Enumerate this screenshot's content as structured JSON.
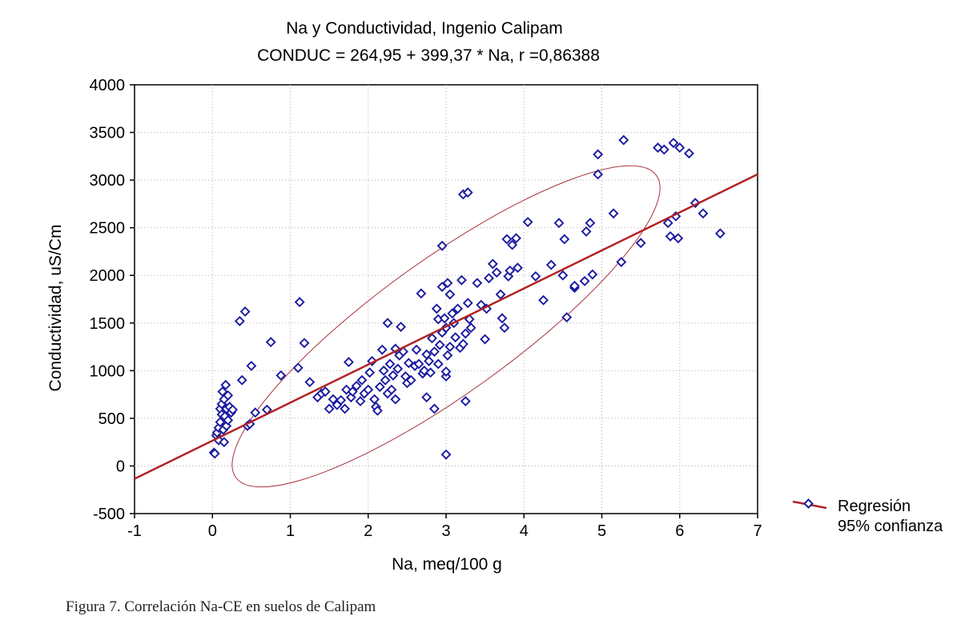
{
  "caption": "Figura 7. Correlación Na-CE en suelos de Calipam",
  "colors": {
    "point_stroke": "#1a1aa0",
    "regression_line": "#b22222",
    "ellipse": "#a8323c",
    "grid": "#b0b0b0"
  },
  "chart_data": {
    "type": "scatter",
    "title": "Na y Conductividad, Ingenio Calipam",
    "subtitle": "CONDUC = 264,95 + 399,37 * Na, r =0,86388",
    "xlabel": "Na, meq/100 g",
    "ylabel": "Conductividad, uS/Cm",
    "xlim": [
      -1,
      7
    ],
    "ylim": [
      -500,
      4000
    ],
    "x_ticks": [
      -1,
      0,
      1,
      2,
      3,
      4,
      5,
      6,
      7
    ],
    "y_ticks": [
      -500,
      0,
      500,
      1000,
      1500,
      2000,
      2500,
      3000,
      3500,
      4000
    ],
    "grid": true,
    "legend": {
      "placement": "right",
      "entries": [
        "Regresión",
        "95% confianza"
      ]
    },
    "regression": {
      "intercept": 264.95,
      "slope": 399.37,
      "r": 0.86388
    },
    "confidence_ellipse": {
      "center": [
        3.0,
        1465
      ],
      "extreme_upper": [
        5.7,
        3050
      ],
      "extreme_lower": [
        0.3,
        -120
      ]
    },
    "points": [
      [
        0.02,
        140
      ],
      [
        0.03,
        130
      ],
      [
        0.05,
        320
      ],
      [
        0.06,
        350
      ],
      [
        0.08,
        270
      ],
      [
        0.08,
        400
      ],
      [
        0.1,
        460
      ],
      [
        0.1,
        600
      ],
      [
        0.12,
        650
      ],
      [
        0.12,
        540
      ],
      [
        0.13,
        780
      ],
      [
        0.14,
        380
      ],
      [
        0.15,
        250
      ],
      [
        0.15,
        700
      ],
      [
        0.16,
        520
      ],
      [
        0.17,
        850
      ],
      [
        0.18,
        600
      ],
      [
        0.18,
        420
      ],
      [
        0.2,
        740
      ],
      [
        0.2,
        480
      ],
      [
        0.22,
        620
      ],
      [
        0.24,
        560
      ],
      [
        0.26,
        590
      ],
      [
        0.35,
        1520
      ],
      [
        0.38,
        900
      ],
      [
        0.42,
        1620
      ],
      [
        0.45,
        420
      ],
      [
        0.48,
        440
      ],
      [
        0.5,
        1050
      ],
      [
        0.55,
        560
      ],
      [
        0.7,
        590
      ],
      [
        0.75,
        1300
      ],
      [
        0.88,
        950
      ],
      [
        1.1,
        1030
      ],
      [
        1.12,
        1720
      ],
      [
        1.18,
        1290
      ],
      [
        1.25,
        880
      ],
      [
        1.35,
        720
      ],
      [
        1.4,
        760
      ],
      [
        1.45,
        780
      ],
      [
        1.5,
        600
      ],
      [
        1.55,
        700
      ],
      [
        1.6,
        640
      ],
      [
        1.65,
        690
      ],
      [
        1.7,
        600
      ],
      [
        1.72,
        800
      ],
      [
        1.75,
        1090
      ],
      [
        1.78,
        720
      ],
      [
        1.8,
        780
      ],
      [
        1.85,
        840
      ],
      [
        1.9,
        680
      ],
      [
        1.92,
        900
      ],
      [
        1.95,
        760
      ],
      [
        2.0,
        800
      ],
      [
        2.02,
        980
      ],
      [
        2.05,
        1100
      ],
      [
        2.08,
        700
      ],
      [
        2.1,
        620
      ],
      [
        2.12,
        580
      ],
      [
        2.15,
        830
      ],
      [
        2.18,
        1220
      ],
      [
        2.2,
        1000
      ],
      [
        2.22,
        900
      ],
      [
        2.25,
        760
      ],
      [
        2.25,
        1500
      ],
      [
        2.28,
        1070
      ],
      [
        2.3,
        800
      ],
      [
        2.32,
        950
      ],
      [
        2.35,
        700
      ],
      [
        2.35,
        1230
      ],
      [
        2.38,
        1020
      ],
      [
        2.4,
        1160
      ],
      [
        2.42,
        1460
      ],
      [
        2.45,
        1200
      ],
      [
        2.48,
        940
      ],
      [
        2.5,
        870
      ],
      [
        2.52,
        1080
      ],
      [
        2.55,
        900
      ],
      [
        2.6,
        1050
      ],
      [
        2.62,
        1220
      ],
      [
        2.65,
        1070
      ],
      [
        2.68,
        1810
      ],
      [
        2.7,
        970
      ],
      [
        2.72,
        1000
      ],
      [
        2.75,
        1170
      ],
      [
        2.75,
        720
      ],
      [
        2.78,
        1100
      ],
      [
        2.8,
        980
      ],
      [
        2.82,
        1340
      ],
      [
        2.85,
        1200
      ],
      [
        2.85,
        600
      ],
      [
        2.88,
        1650
      ],
      [
        2.9,
        1540
      ],
      [
        2.9,
        1070
      ],
      [
        2.92,
        1270
      ],
      [
        2.95,
        1880
      ],
      [
        2.95,
        1400
      ],
      [
        2.95,
        2310
      ],
      [
        2.98,
        1550
      ],
      [
        3.0,
        1450
      ],
      [
        3.0,
        940
      ],
      [
        3.0,
        990
      ],
      [
        3.0,
        120
      ],
      [
        3.02,
        1160
      ],
      [
        3.02,
        1920
      ],
      [
        3.05,
        1800
      ],
      [
        3.05,
        1250
      ],
      [
        3.08,
        1600
      ],
      [
        3.1,
        1500
      ],
      [
        3.12,
        1350
      ],
      [
        3.15,
        1650
      ],
      [
        3.18,
        1240
      ],
      [
        3.2,
        1950
      ],
      [
        3.22,
        2850
      ],
      [
        3.22,
        1280
      ],
      [
        3.25,
        1390
      ],
      [
        3.25,
        680
      ],
      [
        3.28,
        2870
      ],
      [
        3.28,
        1710
      ],
      [
        3.3,
        1540
      ],
      [
        3.32,
        1450
      ],
      [
        3.4,
        1920
      ],
      [
        3.45,
        1690
      ],
      [
        3.5,
        1330
      ],
      [
        3.52,
        1650
      ],
      [
        3.55,
        1970
      ],
      [
        3.6,
        2120
      ],
      [
        3.65,
        2030
      ],
      [
        3.7,
        1800
      ],
      [
        3.72,
        1550
      ],
      [
        3.75,
        1450
      ],
      [
        3.78,
        2380
      ],
      [
        3.8,
        1990
      ],
      [
        3.82,
        2050
      ],
      [
        3.85,
        2320
      ],
      [
        3.9,
        2390
      ],
      [
        3.92,
        2080
      ],
      [
        4.05,
        2560
      ],
      [
        4.15,
        1990
      ],
      [
        4.25,
        1740
      ],
      [
        4.35,
        2110
      ],
      [
        4.45,
        2550
      ],
      [
        4.5,
        2000
      ],
      [
        4.52,
        2380
      ],
      [
        4.55,
        1560
      ],
      [
        4.65,
        1870
      ],
      [
        4.65,
        1890
      ],
      [
        4.78,
        1940
      ],
      [
        4.8,
        2460
      ],
      [
        4.85,
        2550
      ],
      [
        4.88,
        2010
      ],
      [
        4.95,
        3060
      ],
      [
        4.95,
        3270
      ],
      [
        5.15,
        2650
      ],
      [
        5.25,
        2140
      ],
      [
        5.28,
        3420
      ],
      [
        5.5,
        2340
      ],
      [
        5.72,
        3340
      ],
      [
        5.8,
        3320
      ],
      [
        5.85,
        2550
      ],
      [
        5.88,
        2410
      ],
      [
        5.92,
        3390
      ],
      [
        5.95,
        2620
      ],
      [
        5.98,
        2390
      ],
      [
        6.0,
        3340
      ],
      [
        6.12,
        3280
      ],
      [
        6.2,
        2760
      ],
      [
        6.3,
        2650
      ],
      [
        6.52,
        2440
      ]
    ]
  }
}
